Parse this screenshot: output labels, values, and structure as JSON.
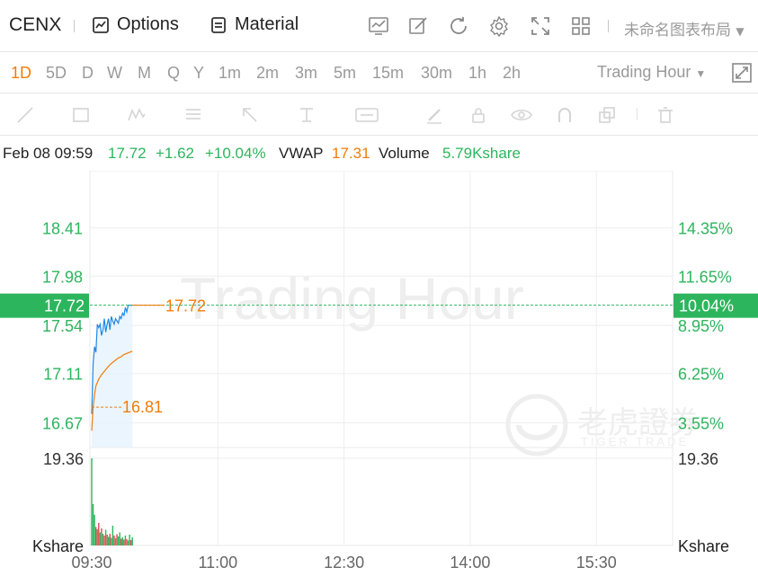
{
  "header": {
    "symbol": "CENX",
    "options_label": "Options",
    "material_label": "Material",
    "layout_name": "未命名图表布局",
    "icons": [
      "chart-icon",
      "edit-icon",
      "refresh-icon",
      "settings-icon",
      "fullscreen-icon",
      "grid-icon"
    ]
  },
  "timeframes": {
    "items": [
      "1D",
      "5D",
      "D",
      "W",
      "M",
      "Q",
      "Y",
      "1m",
      "2m",
      "3m",
      "5m",
      "15m",
      "30m",
      "1h",
      "2h"
    ],
    "active": "1D",
    "session_label": "Trading Hour"
  },
  "drawing_tools": [
    "line-tool-icon",
    "rectangle-tool-icon",
    "pattern-tool-icon",
    "fibonacci-tool-icon",
    "arrow-tool-icon",
    "measure-tool-icon",
    "text-tool-icon",
    "brush-icon",
    "lock-icon",
    "eye-icon",
    "magnet-icon",
    "copy-icon",
    "trash-icon"
  ],
  "info": {
    "datetime": "Feb 08 09:59",
    "price": "17.72",
    "change": "+1.62",
    "change_pct": "+10.04%",
    "vwap_label": "VWAP",
    "vwap": "17.31",
    "volume_label": "Volume",
    "volume": "5.79Kshare"
  },
  "watermark": {
    "text": "Trading Hour",
    "brand_cn": "老虎證券",
    "brand_en": "TIGER TRADE"
  },
  "colors": {
    "up": "#2db55d",
    "down": "#e04b4b",
    "price_line": "#1e88e5",
    "vwap_line": "#f07c0b",
    "active": "#f07c0b"
  },
  "chart_data": {
    "type": "line",
    "title": "",
    "x_ticks": [
      "09:30",
      "11:00",
      "12:30",
      "14:00",
      "15:30"
    ],
    "y_ticks_left": [
      "18.41",
      "17.98",
      "17.54",
      "17.11",
      "16.67"
    ],
    "y_ticks_right": [
      "14.35%",
      "11.65%",
      "8.95%",
      "6.25%",
      "3.55%"
    ],
    "ylim": [
      16.45,
      18.68
    ],
    "last_price": {
      "label": "17.72",
      "pct_label": "10.04%",
      "value": 17.72
    },
    "vwap_start_label": "16.81",
    "volume_axis": {
      "label_left": "19.36",
      "label_right": "19.36",
      "unit": "Kshare",
      "max": 19.36
    },
    "session_start_minute": 0,
    "session_end_minute": 390,
    "price": {
      "name": "Price",
      "minutes": [
        0,
        1,
        2,
        3,
        4,
        5,
        6,
        7,
        8,
        9,
        10,
        11,
        12,
        13,
        14,
        15,
        16,
        17,
        18,
        19,
        20,
        21,
        22,
        23,
        24,
        25,
        26,
        27,
        28,
        29
      ],
      "values": [
        16.75,
        17.2,
        17.35,
        17.3,
        17.55,
        17.52,
        17.55,
        17.45,
        17.5,
        17.6,
        17.48,
        17.55,
        17.6,
        17.5,
        17.62,
        17.58,
        17.55,
        17.6,
        17.58,
        17.56,
        17.62,
        17.6,
        17.65,
        17.63,
        17.7,
        17.66,
        17.72,
        17.72,
        17.72,
        17.72
      ]
    },
    "vwap": {
      "name": "VWAP",
      "minutes": [
        0,
        1,
        2,
        3,
        5,
        7,
        9,
        11,
        13,
        15,
        17,
        19,
        21,
        23,
        25,
        27,
        29
      ],
      "values": [
        16.6,
        16.81,
        16.92,
        17.0,
        17.06,
        17.1,
        17.13,
        17.16,
        17.19,
        17.21,
        17.23,
        17.25,
        17.26,
        17.28,
        17.29,
        17.3,
        17.31
      ]
    },
    "volume": {
      "minutes": [
        0,
        1,
        2,
        3,
        4,
        5,
        6,
        7,
        8,
        9,
        10,
        11,
        12,
        13,
        14,
        15,
        16,
        17,
        18,
        19,
        20,
        21,
        22,
        23,
        24,
        25,
        26,
        27,
        28,
        29
      ],
      "values": [
        19.36,
        9.2,
        6.8,
        4.1,
        3.6,
        5.0,
        2.9,
        3.8,
        2.6,
        2.2,
        3.5,
        2.4,
        1.9,
        2.6,
        1.7,
        4.4,
        2.2,
        1.6,
        2.5,
        2.0,
        2.9,
        1.5,
        1.8,
        1.3,
        2.2,
        1.4,
        1.1,
        2.4,
        1.2,
        1.8
      ],
      "up": [
        true,
        true,
        true,
        false,
        true,
        false,
        true,
        false,
        true,
        false,
        true,
        false,
        true,
        false,
        true,
        true,
        false,
        true,
        false,
        true,
        true,
        false,
        true,
        false,
        true,
        false,
        true,
        true,
        false,
        true
      ]
    }
  }
}
